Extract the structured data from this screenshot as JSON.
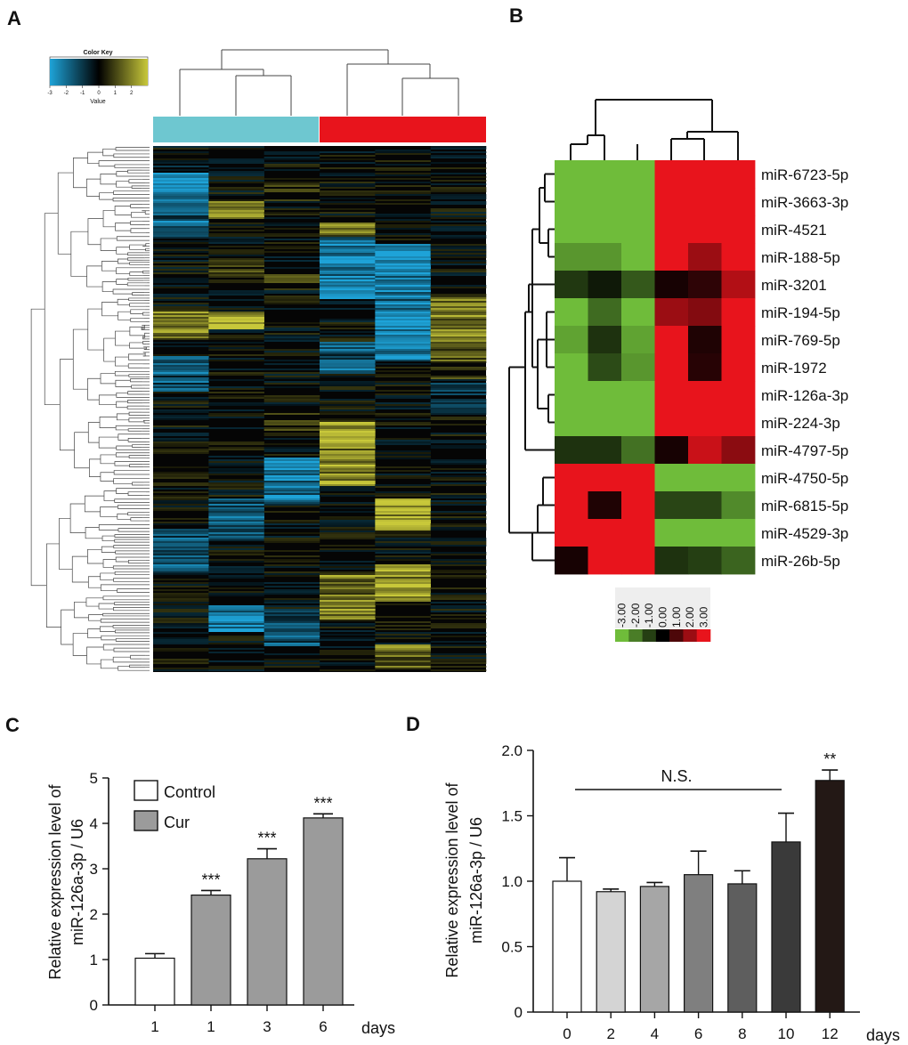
{
  "panels": {
    "A": {
      "letter": "A",
      "color_key": {
        "title": "Color Key",
        "sublabel": "Value",
        "ticks": [
          "-3",
          "-2",
          "-1",
          "0",
          "1",
          "2"
        ],
        "range": [
          -3,
          3
        ],
        "colors": {
          "low": "#1ea3d8",
          "mid": "#000000",
          "high": "#c8c83a"
        }
      },
      "group_colors": [
        "#6ec7d0",
        "#e8141c"
      ],
      "columns": 6
    },
    "B": {
      "letter": "B",
      "rows": [
        "miR-6723-5p",
        "miR-3663-3p",
        "miR-4521",
        "miR-188-5p",
        "miR-3201",
        "miR-194-5p",
        "miR-769-5p",
        "miR-1972",
        "miR-126a-3p",
        "miR-224-3p",
        "miR-4797-5p",
        "miR-4750-5p",
        "miR-6815-5p",
        "miR-4529-3p",
        "miR-26b-5p"
      ],
      "values": [
        [
          -3,
          -3,
          -3,
          3,
          3,
          3
        ],
        [
          -3,
          -3,
          -3,
          3,
          3,
          3
        ],
        [
          -3,
          -3,
          -3,
          3,
          3,
          3
        ],
        [
          -2.4,
          -2.4,
          -3,
          3,
          2,
          3
        ],
        [
          -0.9,
          -0.4,
          -1.4,
          0.3,
          0.6,
          2.3
        ],
        [
          -3,
          -1.7,
          -3,
          2,
          1.7,
          3
        ],
        [
          -2.6,
          -0.8,
          -2.6,
          3,
          0.4,
          3
        ],
        [
          -3,
          -1.2,
          -2.4,
          3,
          0.5,
          3
        ],
        [
          -3,
          -3,
          -3,
          3,
          3,
          3
        ],
        [
          -3,
          -3,
          -3,
          3,
          3,
          3
        ],
        [
          -0.8,
          -0.8,
          -1.8,
          0.3,
          2.6,
          1.8
        ],
        [
          3,
          3,
          3,
          -3,
          -3,
          -3
        ],
        [
          3,
          0.4,
          3,
          -1.1,
          -1.1,
          -2.2
        ],
        [
          3,
          3,
          3,
          -3,
          -3,
          -3
        ],
        [
          0.3,
          3,
          3,
          -0.8,
          -1.0,
          -1.6
        ]
      ],
      "legend_ticks": [
        "-3.00",
        "-2.00",
        "-1.00",
        "0.00",
        "1.00",
        "2.00",
        "3.00"
      ],
      "colors": {
        "low": "#6fbc3a",
        "mid": "#000000",
        "high": "#e8141c"
      }
    },
    "C": {
      "letter": "C",
      "chart_data": {
        "type": "bar",
        "categories": [
          "1",
          "1",
          "3",
          "6"
        ],
        "values": [
          1.03,
          2.42,
          3.22,
          4.12
        ],
        "errors": [
          0.1,
          0.1,
          0.22,
          0.09
        ],
        "groups": [
          "Control",
          "Cur",
          "Cur",
          "Cur"
        ],
        "significance": [
          "",
          "***",
          "***",
          "***"
        ],
        "legend": [
          {
            "name": "Control",
            "color": "#ffffff"
          },
          {
            "name": "Cur",
            "color": "#9b9b9b"
          }
        ],
        "legend_position": "top-left",
        "ylabel_line1": "Relative expression level of",
        "ylabel_line2": "miR-126a-3p / U6",
        "xlabel": "days",
        "ylim": [
          0,
          5
        ],
        "yticks": [
          "0",
          "1",
          "2",
          "3",
          "4",
          "5"
        ]
      }
    },
    "D": {
      "letter": "D",
      "chart_data": {
        "type": "bar",
        "categories": [
          "0",
          "2",
          "4",
          "6",
          "8",
          "10",
          "12"
        ],
        "values": [
          1.0,
          0.92,
          0.96,
          1.05,
          0.98,
          1.3,
          1.77
        ],
        "errors": [
          0.18,
          0.02,
          0.03,
          0.18,
          0.1,
          0.22,
          0.08
        ],
        "bar_colors": [
          "#ffffff",
          "#d4d4d4",
          "#a6a6a6",
          "#7f7f7f",
          "#5e5e5e",
          "#3a3a3a",
          "#231815"
        ],
        "significance": [
          "",
          "",
          "",
          "",
          "",
          "",
          "**"
        ],
        "ns_label": "N.S.",
        "ylabel_line1": "Relative expression level of",
        "ylabel_line2": "miR-126a-3p / U6",
        "xlabel": "days",
        "ylim": [
          0,
          2.0
        ],
        "yticks": [
          "0",
          "0.5",
          "1.0",
          "1.5",
          "2.0"
        ]
      }
    }
  }
}
